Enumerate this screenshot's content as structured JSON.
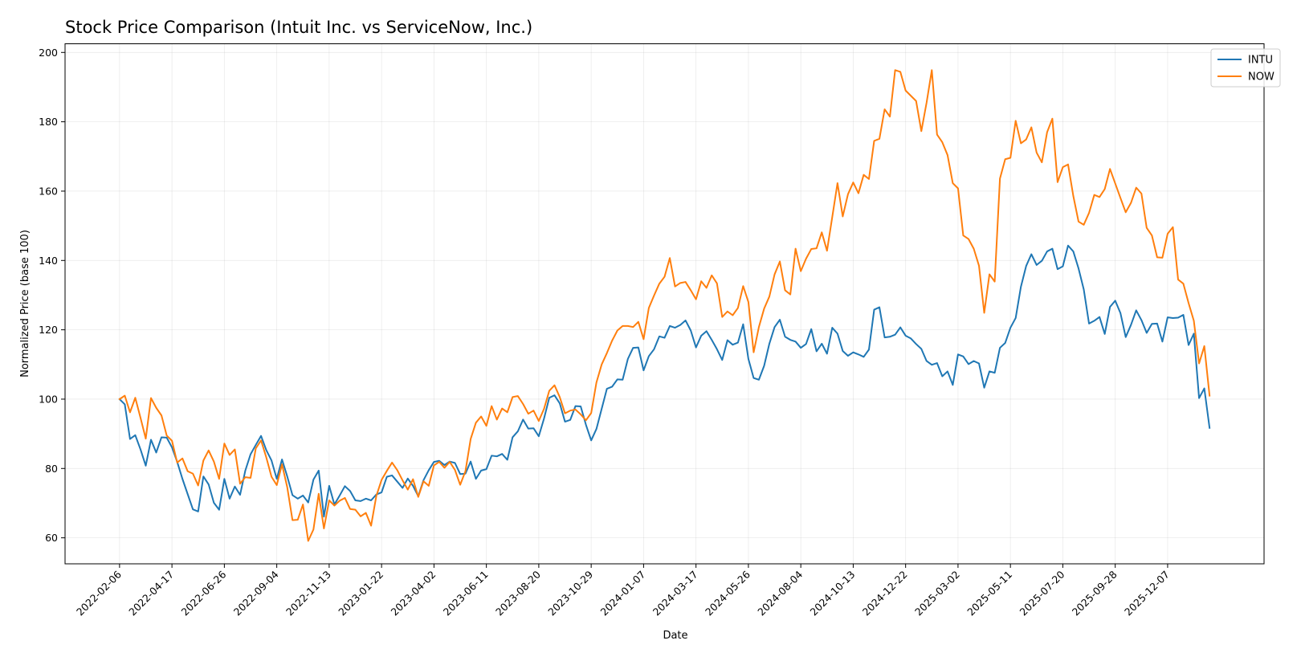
{
  "chart_data": {
    "type": "line",
    "title": "Stock Price Comparison (Intuit Inc. vs ServiceNow, Inc.)",
    "xlabel": "Date",
    "ylabel": "Normalized Price (base 100)",
    "ylim": [
      52.5,
      202.5
    ],
    "yticks": [
      60,
      80,
      100,
      120,
      140,
      160,
      180,
      200
    ],
    "xticks": [
      "2022-02-06",
      "2022-04-17",
      "2022-06-26",
      "2022-09-04",
      "2022-11-13",
      "2023-01-22",
      "2023-04-02",
      "2023-06-11",
      "2023-08-20",
      "2023-10-29",
      "2024-01-07",
      "2024-03-17",
      "2024-05-26",
      "2024-08-04",
      "2024-10-13",
      "2024-12-22",
      "2025-03-02",
      "2025-05-11",
      "2025-07-20",
      "2025-09-28",
      "2025-12-07"
    ],
    "grid": true,
    "legend_position": "top-right",
    "x_start": "2022-02-06",
    "x_step_days": 7,
    "series": [
      {
        "name": "INTU",
        "color": "#1f77b4",
        "values": [
          100.0,
          98.5,
          88.5,
          89.6,
          85.5,
          80.8,
          88.3,
          84.6,
          89.0,
          88.9,
          86.1,
          81.9,
          77.0,
          72.6,
          68.2,
          67.6,
          77.7,
          75.4,
          70.1,
          68.1,
          77.0,
          71.3,
          74.8,
          72.4,
          79.4,
          84.1,
          86.8,
          89.4,
          85.3,
          82.3,
          77.0,
          82.6,
          77.7,
          72.3,
          71.3,
          72.2,
          70.2,
          76.8,
          79.4,
          66.1,
          75.0,
          69.6,
          72.2,
          74.9,
          73.5,
          70.8,
          70.6,
          71.3,
          70.8,
          72.5,
          73.1,
          77.6,
          78.0,
          76.2,
          74.4,
          77.1,
          75.0,
          72.0,
          76.6,
          79.5,
          81.9,
          82.2,
          81.0,
          82.0,
          81.6,
          78.4,
          78.5,
          82.0,
          77.0,
          79.4,
          79.8,
          83.7,
          83.5,
          84.2,
          82.5,
          89.0,
          90.7,
          94.1,
          91.5,
          91.6,
          89.3,
          94.4,
          100.4,
          101.1,
          98.8,
          93.5,
          94.0,
          98.0,
          97.9,
          92.6,
          88.1,
          91.4,
          97.2,
          103.0,
          103.6,
          105.7,
          105.6,
          111.6,
          114.8,
          114.9,
          108.3,
          112.4,
          114.4,
          118.1,
          117.7,
          121.1,
          120.6,
          121.4,
          122.7,
          119.8,
          114.9,
          118.3,
          119.6,
          117.1,
          114.4,
          111.3,
          117.0,
          115.7,
          116.3,
          121.6,
          111.6,
          106.1,
          105.6,
          109.6,
          116.0,
          120.8,
          122.9,
          118.0,
          117.1,
          116.6,
          114.8,
          115.9,
          120.2,
          113.8,
          116.0,
          113.1,
          120.6,
          118.9,
          113.9,
          112.5,
          113.5,
          112.9,
          112.2,
          114.3,
          125.8,
          126.5,
          117.8,
          118.0,
          118.6,
          120.7,
          118.3,
          117.5,
          115.9,
          114.5,
          111.0,
          109.9,
          110.4,
          106.6,
          108.0,
          104.1,
          112.9,
          112.3,
          110.1,
          111.0,
          110.3,
          103.3,
          108.0,
          107.6,
          114.8,
          116.2,
          120.6,
          123.4,
          132.4,
          138.4,
          141.8,
          138.7,
          139.9,
          142.6,
          143.4,
          137.5,
          138.3,
          144.3,
          142.6,
          137.7,
          131.6,
          121.8,
          122.6,
          123.7,
          118.8,
          126.6,
          128.4,
          124.8,
          117.9,
          121.4,
          125.6,
          122.8,
          119.1,
          121.7,
          121.8,
          116.6,
          123.6,
          123.4,
          123.5,
          124.3,
          115.6,
          118.9,
          100.3,
          103.1,
          91.7
        ]
      },
      {
        "name": "NOW",
        "color": "#ff7f0e",
        "values": [
          100.0,
          101.0,
          96.2,
          100.4,
          94.6,
          88.6,
          100.3,
          97.5,
          95.3,
          89.5,
          88.0,
          81.7,
          82.9,
          79.2,
          78.5,
          75.1,
          82.3,
          85.2,
          82.0,
          77.0,
          87.2,
          83.9,
          85.5,
          75.6,
          77.5,
          77.3,
          85.8,
          88.1,
          83.2,
          77.6,
          75.2,
          81.2,
          74.6,
          65.1,
          65.2,
          69.6,
          59.1,
          62.4,
          72.7,
          62.7,
          70.8,
          69.3,
          70.7,
          71.5,
          68.3,
          68.1,
          66.2,
          67.2,
          63.5,
          72.1,
          76.7,
          79.3,
          81.7,
          79.5,
          76.6,
          73.9,
          76.9,
          71.8,
          76.3,
          75.0,
          80.9,
          81.9,
          80.2,
          81.9,
          79.6,
          75.3,
          79.2,
          88.5,
          93.2,
          95.0,
          92.3,
          98.0,
          94.1,
          97.3,
          96.2,
          100.6,
          100.9,
          98.6,
          95.8,
          96.7,
          93.7,
          97.2,
          102.4,
          104.0,
          100.6,
          95.9,
          96.7,
          97.0,
          95.6,
          93.9,
          96.0,
          104.8,
          110.0,
          113.3,
          116.9,
          119.8,
          121.1,
          121.1,
          120.8,
          122.3,
          117.3,
          126.3,
          129.9,
          133.3,
          135.3,
          140.7,
          132.5,
          133.5,
          133.8,
          131.4,
          128.8,
          134.0,
          132.1,
          135.7,
          133.4,
          123.7,
          125.3,
          124.2,
          126.3,
          132.6,
          128.0,
          113.5,
          120.8,
          126.1,
          129.6,
          136.0,
          139.7,
          131.4,
          130.2,
          143.4,
          136.9,
          140.5,
          143.3,
          143.5,
          148.1,
          142.8,
          152.5,
          162.3,
          152.7,
          159.1,
          162.5,
          159.4,
          164.7,
          163.5,
          174.5,
          175.1,
          183.6,
          181.5,
          194.9,
          194.4,
          189.0,
          187.5,
          186.0,
          177.3,
          185.5,
          194.9,
          176.3,
          174.1,
          170.4,
          162.3,
          160.8,
          147.2,
          146.2,
          143.4,
          138.5,
          124.9,
          136.0,
          133.9,
          163.6,
          169.2,
          169.6,
          180.3,
          173.8,
          174.9,
          178.4,
          171.1,
          168.3,
          177.0,
          180.9,
          162.6,
          166.9,
          167.7,
          158.6,
          151.2,
          150.3,
          153.7,
          158.9,
          158.3,
          160.6,
          166.4,
          162.2,
          158.0,
          153.9,
          156.6,
          161.0,
          159.3,
          149.4,
          147.2,
          140.9,
          140.8,
          147.7,
          149.6,
          134.5,
          133.3,
          127.7,
          122.6,
          110.3,
          115.3,
          101.0
        ]
      }
    ]
  }
}
